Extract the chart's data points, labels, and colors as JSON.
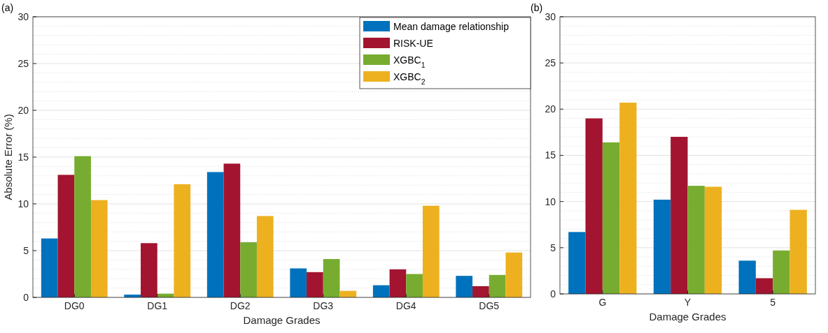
{
  "chart_data": [
    {
      "type": "bar",
      "title": "(a)",
      "xlabel": "Damage Grades",
      "ylabel": "Absolute Error (%)",
      "categories": [
        "DG0",
        "DG1",
        "DG2",
        "DG3",
        "DG4",
        "DG5"
      ],
      "ylim": [
        0,
        30
      ],
      "yticks": [
        0,
        5,
        10,
        15,
        20,
        25,
        30
      ],
      "grid": true,
      "legend": "top right",
      "series": [
        {
          "name": "Mean damage relationship",
          "color": "#0072bd",
          "values": [
            6.3,
            0.3,
            13.4,
            3.1,
            1.3,
            2.3
          ]
        },
        {
          "name": "RISK-UE",
          "color": "#a2142f",
          "values": [
            13.1,
            5.8,
            14.3,
            2.7,
            3.0,
            1.2
          ]
        },
        {
          "name": "XGBC$_{1}$",
          "color": "#77ac30",
          "values": [
            15.1,
            0.4,
            5.9,
            4.1,
            2.5,
            2.4
          ]
        },
        {
          "name": "XGBC$_{2}$",
          "color": "#edb120",
          "values": [
            10.4,
            12.1,
            8.7,
            0.7,
            9.8,
            4.8
          ]
        }
      ]
    },
    {
      "type": "bar",
      "title": "(b)",
      "xlabel": "Damage Grades",
      "categories": [
        "G",
        "Y",
        "5"
      ],
      "ylim": [
        0,
        30
      ],
      "yticks": [
        0,
        5,
        10,
        15,
        20,
        25,
        30
      ],
      "grid": true,
      "series": [
        {
          "color": "#0072bd",
          "values": [
            6.7,
            10.2,
            3.6
          ]
        },
        {
          "color": "#a2142f",
          "values": [
            19.0,
            17.0,
            1.7
          ]
        },
        {
          "color": "#77ac30",
          "values": [
            16.4,
            11.7,
            4.7
          ]
        },
        {
          "color": "#edb120",
          "values": [
            20.7,
            11.6,
            9.1
          ]
        }
      ]
    }
  ]
}
